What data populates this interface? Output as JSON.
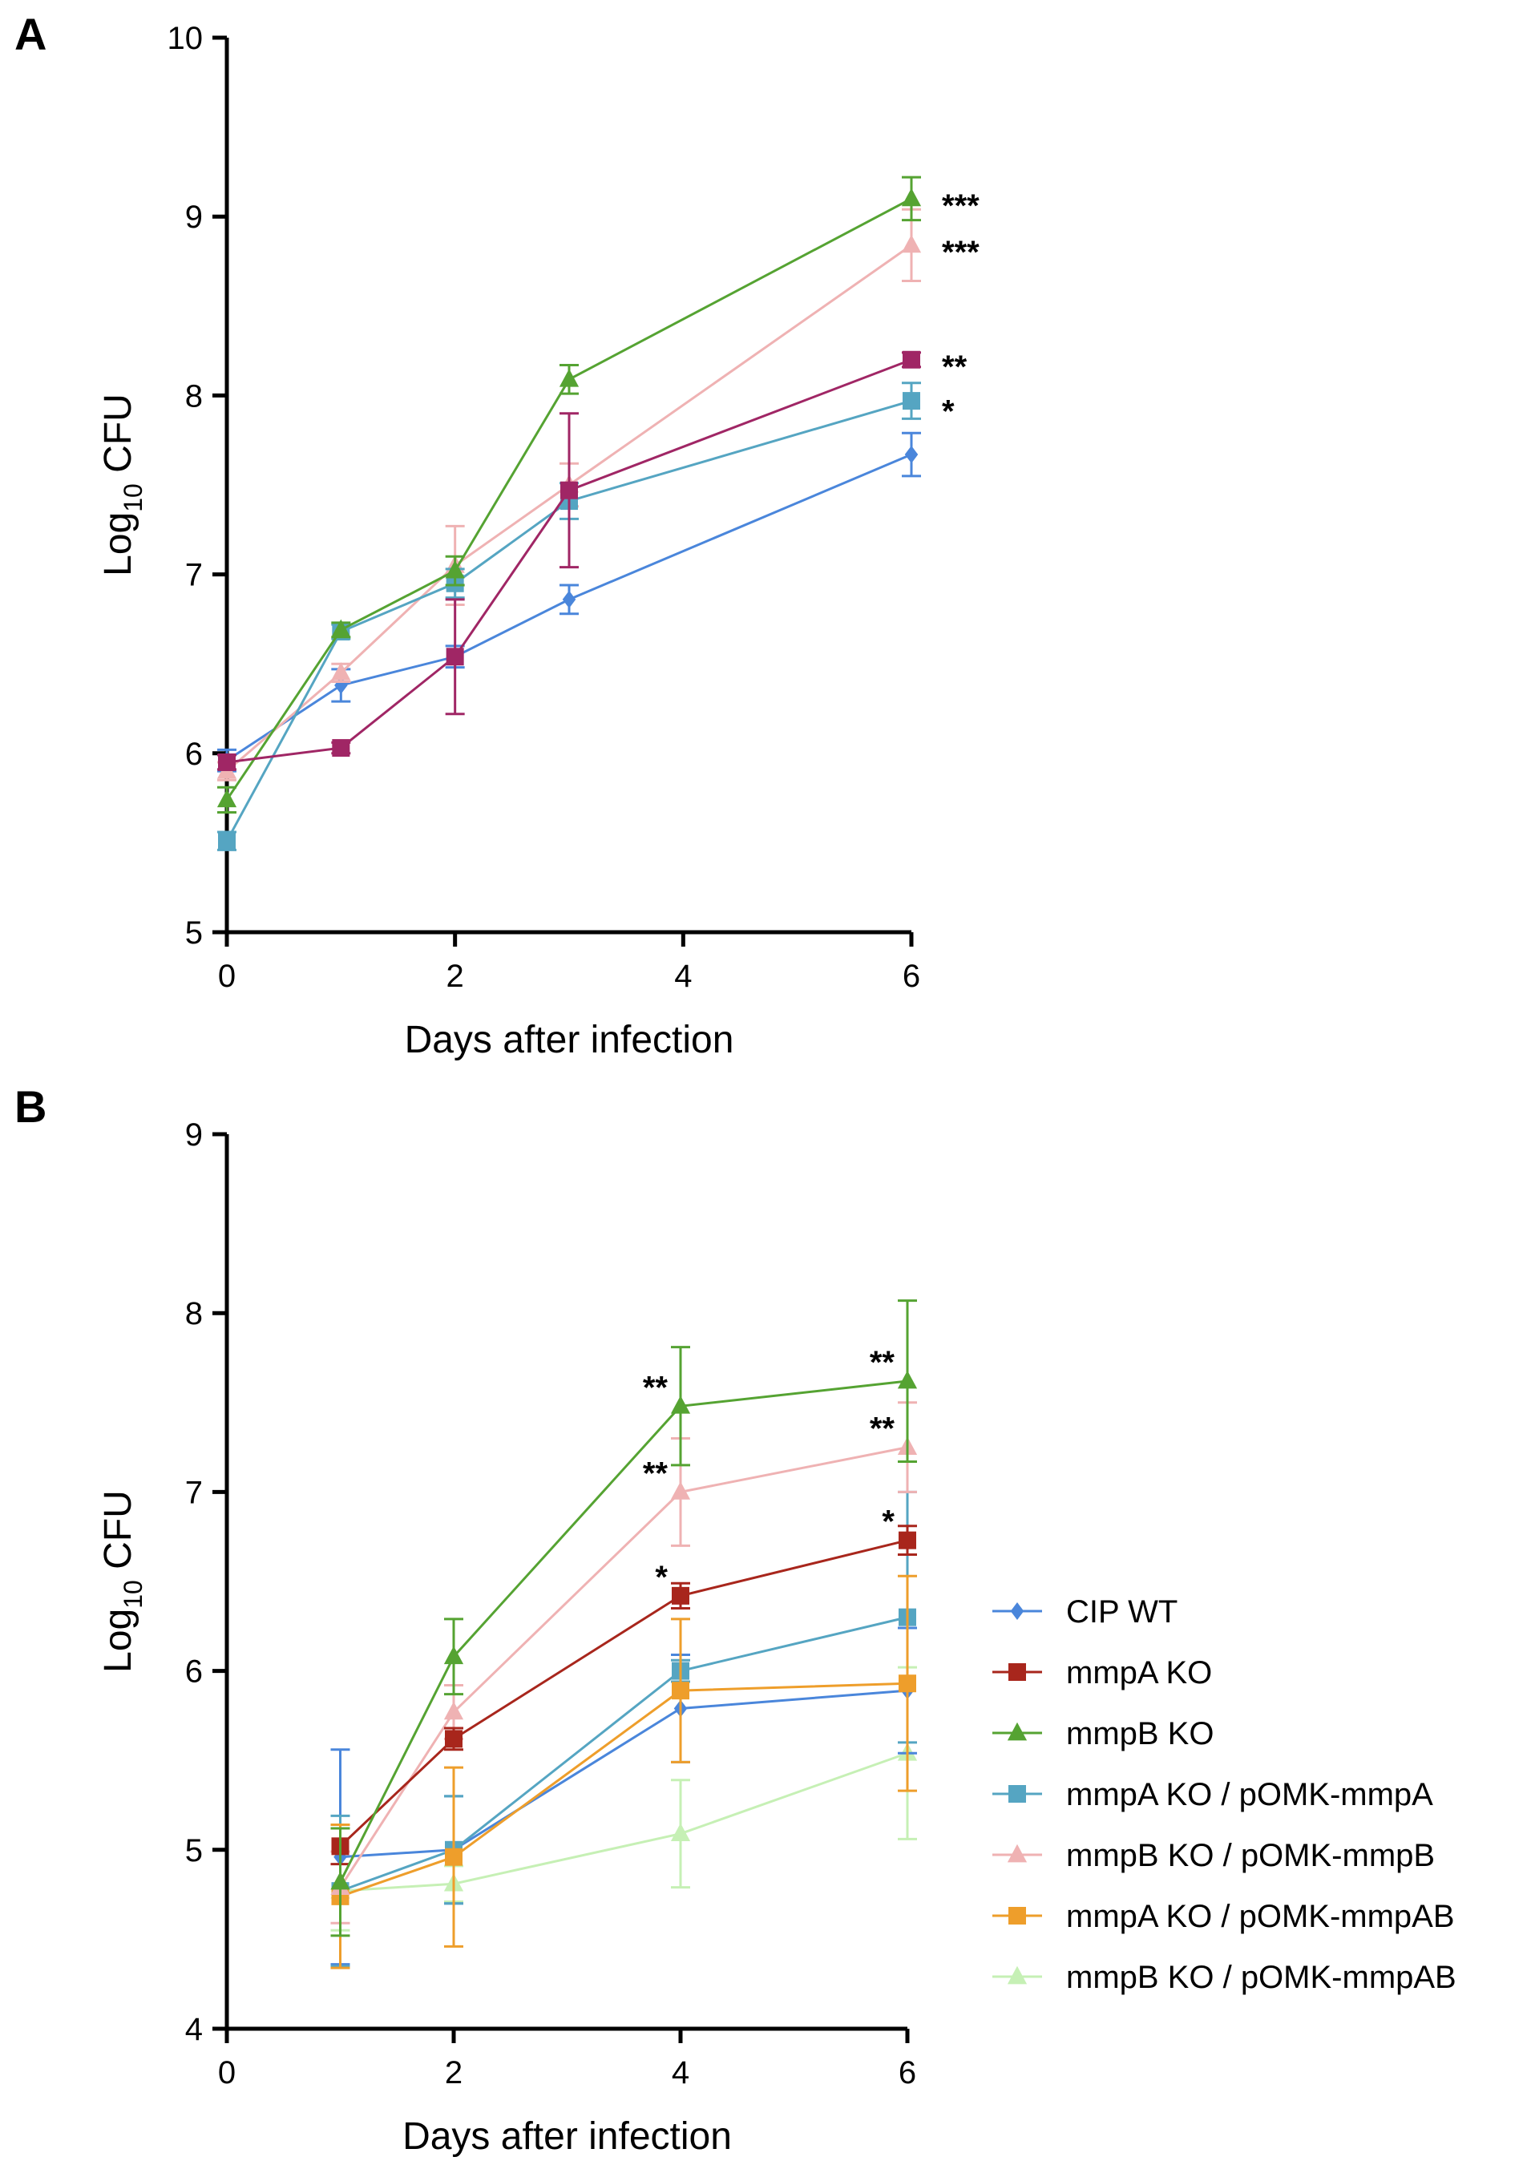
{
  "chart_data": [
    {
      "panel": "A",
      "type": "line",
      "xlabel": "Days after infection",
      "ylabel_main": "Log",
      "ylabel_sub": "10",
      "ylabel_tail": " CFU",
      "xlim": [
        0,
        6
      ],
      "ylim": [
        5,
        10
      ],
      "xticks": [
        0,
        2,
        4,
        6
      ],
      "yticks": [
        5,
        6,
        7,
        8,
        9,
        10
      ],
      "series": [
        {
          "name": "CIP WT",
          "color": "#4A86DB",
          "marker": "diamond",
          "x": [
            0,
            1,
            2,
            3,
            6
          ],
          "y": [
            5.96,
            6.38,
            6.54,
            6.86,
            7.67
          ],
          "err": [
            0.06,
            0.09,
            0.06,
            0.08,
            0.12
          ]
        },
        {
          "name": "mmpB KO / pOMK-mmpB",
          "color": "#EFB2B3",
          "marker": "triangle",
          "x": [
            0,
            1,
            2,
            3,
            6
          ],
          "y": [
            5.9,
            6.45,
            7.05,
            7.5,
            8.84
          ],
          "err": [
            0.05,
            0.05,
            0.22,
            0.12,
            0.2
          ]
        },
        {
          "name": "mmpA KO / pOMK-mmpA",
          "color": "#55A5C2",
          "marker": "square",
          "x": [
            0,
            1,
            2,
            3,
            6
          ],
          "y": [
            5.51,
            6.68,
            6.95,
            7.41,
            7.97
          ],
          "err": [
            0.05,
            0.04,
            0.08,
            0.1,
            0.1
          ]
        },
        {
          "name": "mmpB KO",
          "color": "#55A332",
          "marker": "triangle",
          "x": [
            0,
            1,
            2,
            3,
            6
          ],
          "y": [
            5.74,
            6.69,
            7.02,
            8.09,
            9.1
          ],
          "err": [
            0.07,
            0.04,
            0.08,
            0.08,
            0.12
          ]
        },
        {
          "name": "mmpA KO",
          "color": "#A02665",
          "marker": "square",
          "x": [
            0,
            1,
            2,
            3,
            6
          ],
          "y": [
            5.95,
            6.03,
            6.54,
            7.47,
            8.2
          ],
          "err": [
            0.04,
            0.03,
            0.32,
            0.43,
            0.04
          ]
        }
      ],
      "annotations": [
        {
          "text": "***",
          "x": 6,
          "y": 9.1
        },
        {
          "text": "***",
          "x": 6,
          "y": 8.84
        },
        {
          "text": "**",
          "x": 6,
          "y": 8.2
        },
        {
          "text": "*",
          "x": 6,
          "y": 7.95
        }
      ]
    },
    {
      "panel": "B",
      "type": "line",
      "xlabel": "Days after infection",
      "ylabel_main": "Log",
      "ylabel_sub": "10",
      "ylabel_tail": " CFU",
      "xlim": [
        0,
        6
      ],
      "ylim": [
        4,
        9
      ],
      "xticks": [
        0,
        2,
        4,
        6
      ],
      "yticks": [
        4,
        5,
        6,
        7,
        8,
        9
      ],
      "series": [
        {
          "name": "mmpB KO / pOMK-mmpAB",
          "color": "#C6F0B5",
          "marker": "triangle",
          "x": [
            1,
            2,
            4,
            6
          ],
          "y": [
            4.77,
            4.81,
            5.09,
            5.54
          ],
          "err": [
            0.22,
            0.1,
            0.3,
            0.48
          ]
        },
        {
          "name": "CIP WT",
          "color": "#4A86DB",
          "marker": "diamond",
          "x": [
            1,
            2,
            4,
            6
          ],
          "y": [
            4.96,
            5.0,
            5.79,
            5.89
          ],
          "err": [
            0.6,
            0.3,
            0.3,
            0.35
          ]
        },
        {
          "name": "mmpA KO / pOMK-mmpA",
          "color": "#55A5C2",
          "marker": "square",
          "x": [
            1,
            2,
            4,
            6
          ],
          "y": [
            4.77,
            5.0,
            6.0,
            6.3
          ],
          "err": [
            0.42,
            0.3,
            0.06,
            0.7
          ]
        },
        {
          "name": "mmpA KO / pOMK-mmpAB",
          "color": "#EE9E2B",
          "marker": "square",
          "x": [
            1,
            2,
            4,
            6
          ],
          "y": [
            4.74,
            4.96,
            5.89,
            5.93
          ],
          "err": [
            0.4,
            0.5,
            0.4,
            0.6
          ]
        },
        {
          "name": "mmpB KO / pOMK-mmpB",
          "color": "#EFB2B3",
          "marker": "triangle",
          "x": [
            1,
            2,
            4,
            6
          ],
          "y": [
            4.79,
            5.77,
            7.0,
            7.25
          ],
          "err": [
            0.2,
            0.15,
            0.3,
            0.25
          ]
        },
        {
          "name": "mmpA KO",
          "color": "#A8261C",
          "marker": "square",
          "x": [
            1,
            2,
            4,
            6
          ],
          "y": [
            5.02,
            5.62,
            6.42,
            6.73
          ],
          "err": [
            0.1,
            0.06,
            0.07,
            0.08
          ]
        },
        {
          "name": "mmpB KO",
          "color": "#55A332",
          "marker": "triangle",
          "x": [
            1,
            2,
            4,
            6
          ],
          "y": [
            4.82,
            6.08,
            7.48,
            7.62
          ],
          "err": [
            0.3,
            0.21,
            0.33,
            0.45
          ]
        }
      ],
      "annotations": [
        {
          "text": "**",
          "x": 4,
          "y": 7.48
        },
        {
          "text": "**",
          "x": 4,
          "y": 7.0
        },
        {
          "text": "*",
          "x": 4,
          "y": 6.42
        },
        {
          "text": "**",
          "x": 6,
          "y": 7.62
        },
        {
          "text": "**",
          "x": 6,
          "y": 7.25
        },
        {
          "text": "*",
          "x": 6,
          "y": 6.73
        }
      ],
      "legend": {
        "placement": "right",
        "entries": [
          {
            "label": "CIP WT",
            "color": "#4A86DB",
            "marker": "diamond"
          },
          {
            "label": "mmpA KO",
            "color": "#A8261C",
            "marker": "square"
          },
          {
            "label": "mmpB KO",
            "color": "#55A332",
            "marker": "triangle"
          },
          {
            "label": "mmpA KO / pOMK-mmpA",
            "color": "#55A5C2",
            "marker": "square"
          },
          {
            "label": "mmpB KO / pOMK-mmpB",
            "color": "#EFB2B3",
            "marker": "triangle"
          },
          {
            "label": "mmpA KO / pOMK-mmpAB",
            "color": "#EE9E2B",
            "marker": "square"
          },
          {
            "label": "mmpB KO / pOMK-mmpAB",
            "color": "#C6F0B5",
            "marker": "triangle"
          }
        ]
      }
    }
  ]
}
